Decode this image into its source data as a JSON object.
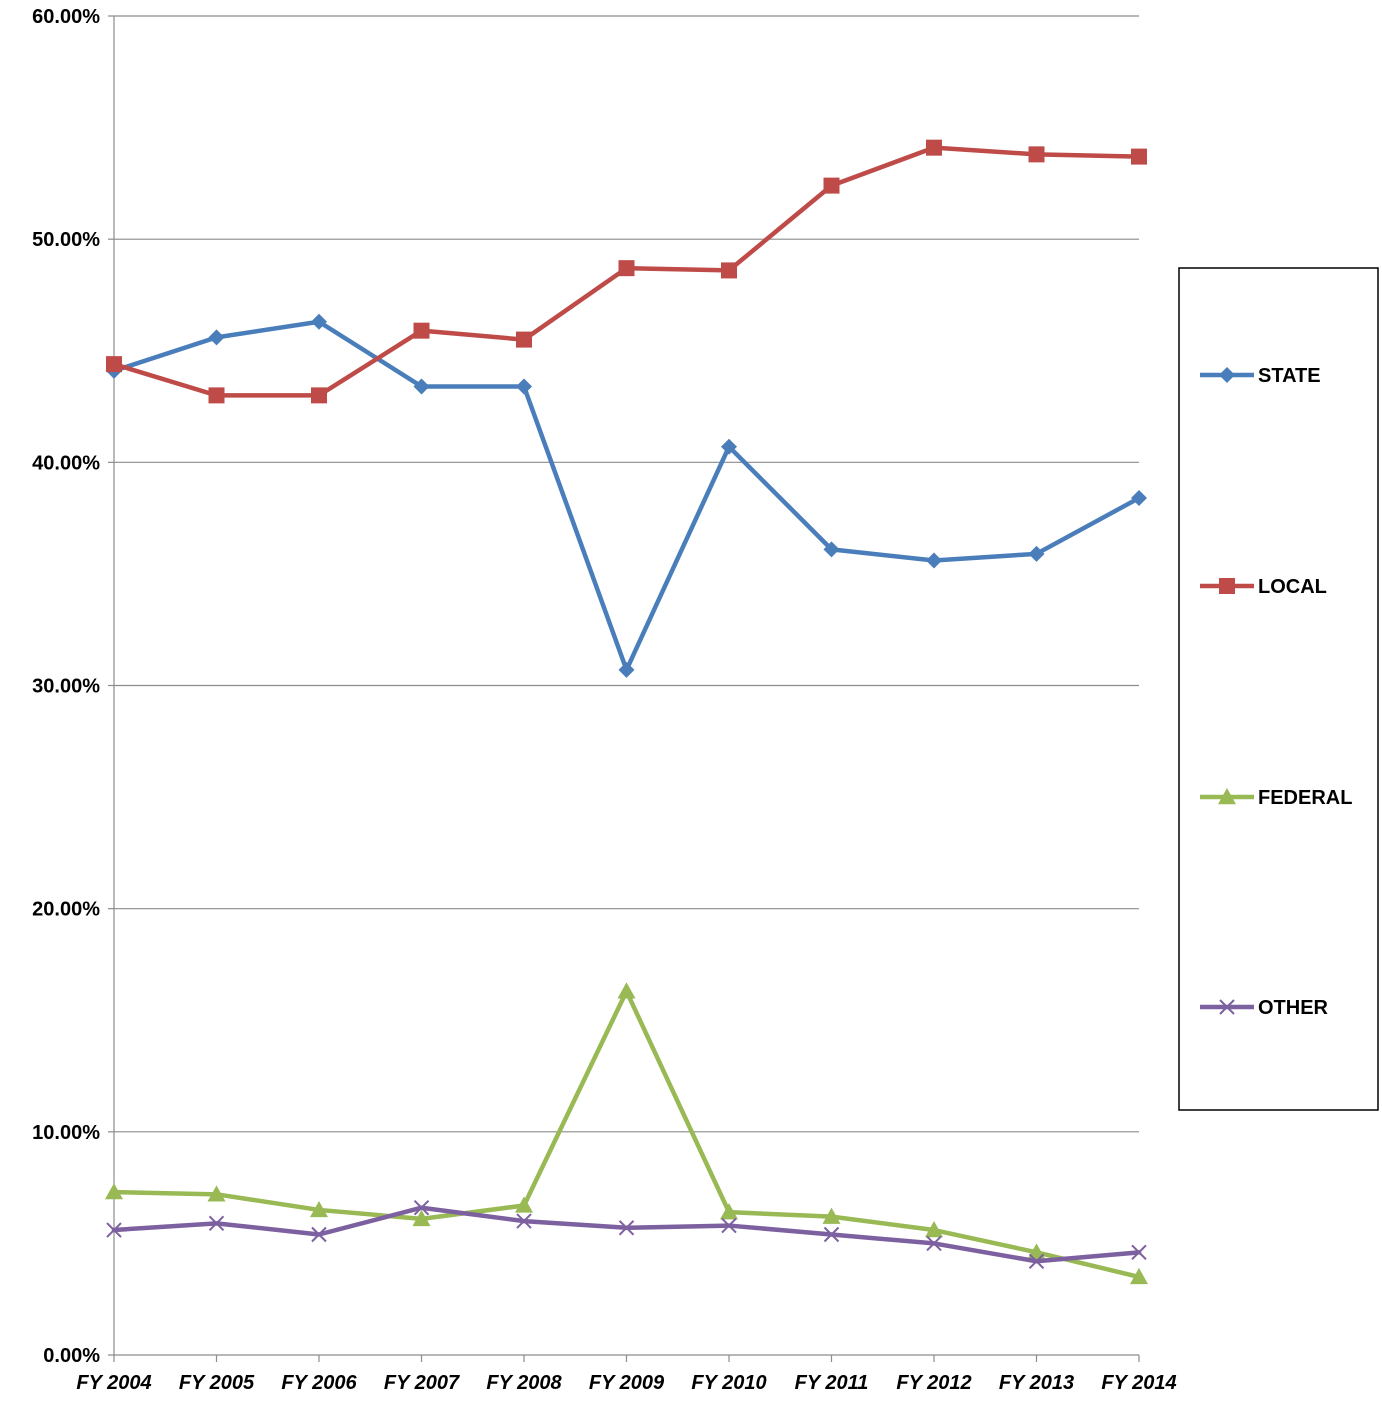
{
  "chart_data": {
    "type": "line",
    "title": "",
    "xlabel": "",
    "ylabel": "",
    "categories": [
      "FY 2004",
      "FY 2005",
      "FY 2006",
      "FY 2007",
      "FY 2008",
      "FY 2009",
      "FY 2010",
      "FY 2011",
      "FY 2012",
      "FY 2013",
      "FY 2014"
    ],
    "ylim": [
      0,
      60
    ],
    "yticks": [
      "0.00%",
      "10.00%",
      "20.00%",
      "30.00%",
      "40.00%",
      "50.00%",
      "60.00%"
    ],
    "grid": "horizontal",
    "legend": "right",
    "series": [
      {
        "name": "STATE",
        "color": "#4a7ebb",
        "marker": "diamond",
        "values": [
          44.1,
          45.6,
          46.3,
          43.4,
          43.4,
          30.7,
          40.7,
          36.1,
          35.6,
          35.9,
          38.4
        ]
      },
      {
        "name": "LOCAL",
        "color": "#be4b48",
        "marker": "square",
        "values": [
          44.4,
          43.0,
          43.0,
          45.9,
          45.5,
          48.7,
          48.6,
          52.4,
          54.1,
          53.8,
          53.7
        ]
      },
      {
        "name": "FEDERAL",
        "color": "#98b954",
        "marker": "triangle",
        "values": [
          7.3,
          7.2,
          6.5,
          6.1,
          6.7,
          16.3,
          6.4,
          6.2,
          5.6,
          4.6,
          3.5
        ]
      },
      {
        "name": "OTHER",
        "color": "#7d60a0",
        "marker": "x",
        "values": [
          5.6,
          5.9,
          5.4,
          6.6,
          6.0,
          5.7,
          5.8,
          5.4,
          5.0,
          4.2,
          4.6
        ]
      }
    ]
  }
}
